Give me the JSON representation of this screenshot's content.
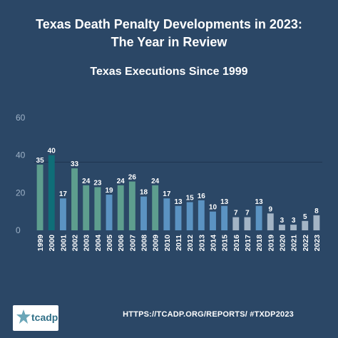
{
  "header": {
    "title_line1": "Texas Death Penalty Developments in 2023:",
    "title_line2": "The Year in Review"
  },
  "chart_data": {
    "type": "bar",
    "title": "Texas Executions Since 1999",
    "xlabel": "",
    "ylabel": "",
    "ylim": [
      0,
      60
    ],
    "yticks": [
      0,
      20,
      40,
      60
    ],
    "grid": false,
    "reference_line": 36.3,
    "categories": [
      "1999",
      "2000",
      "2001",
      "2002",
      "2003",
      "2004",
      "2005",
      "2006",
      "2007",
      "2008",
      "2009",
      "2010",
      "2011",
      "2012",
      "2013",
      "2014",
      "2015",
      "2016",
      "2017",
      "2018",
      "2019",
      "2020",
      "2021",
      "2022",
      "2023"
    ],
    "values": [
      35,
      40,
      17,
      33,
      24,
      23,
      19,
      24,
      26,
      18,
      24,
      17,
      13,
      15,
      16,
      10,
      13,
      7,
      7,
      13,
      9,
      3,
      3,
      5,
      8
    ],
    "bar_colors": [
      "#5e9e8e",
      "#0f6e78",
      "#5b93c2",
      "#5e9e8e",
      "#5e9e8e",
      "#5e9e8e",
      "#5b93c2",
      "#5e9e8e",
      "#5e9e8e",
      "#5b93c2",
      "#5e9e8e",
      "#5b93c2",
      "#5b93c2",
      "#5b93c2",
      "#5b93c2",
      "#5b93c2",
      "#5b93c2",
      "#a3b4c5",
      "#a3b4c5",
      "#5b93c2",
      "#a3b4c5",
      "#a3b4c5",
      "#a3b4c5",
      "#a3b4c5",
      "#a3b4c5"
    ]
  },
  "footer": {
    "url_text": "HTTPS://TCADP.ORG/REPORTS/ #TXDP2023",
    "logo_text": "tcadp"
  }
}
